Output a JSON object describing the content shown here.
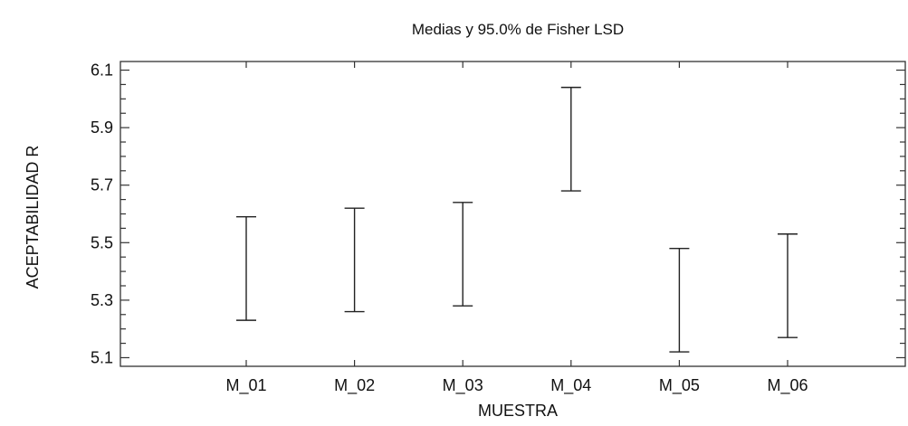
{
  "chart_data": {
    "type": "errorbar",
    "title": "Medias y 95.0% de Fisher LSD",
    "xlabel": "MUESTRA",
    "ylabel": "ACEPTABILIDAD R",
    "categories": [
      "M_01",
      "M_02",
      "M_03",
      "M_04",
      "M_05",
      "M_06"
    ],
    "intervals": [
      {
        "low": 5.23,
        "high": 5.59
      },
      {
        "low": 5.26,
        "high": 5.62
      },
      {
        "low": 5.28,
        "high": 5.64
      },
      {
        "low": 5.68,
        "high": 6.04
      },
      {
        "low": 5.12,
        "high": 5.48
      },
      {
        "low": 5.17,
        "high": 5.53
      }
    ],
    "ylim": [
      5.1,
      6.1
    ],
    "yticks": [
      "5.1",
      "5.3",
      "5.5",
      "5.7",
      "5.9",
      "6.1"
    ],
    "grid": false,
    "colors": {
      "axis": "#333333",
      "bars": "#222222"
    }
  }
}
